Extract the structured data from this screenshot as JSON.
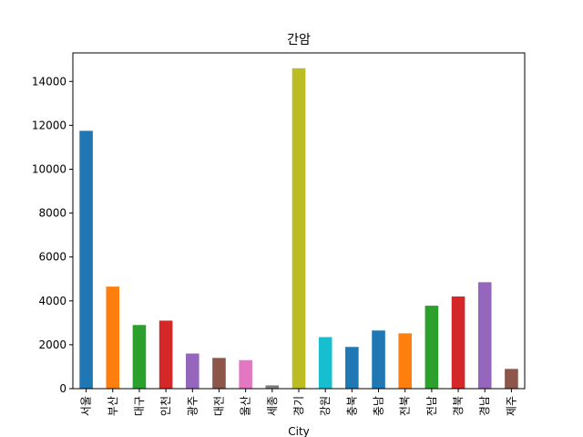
{
  "chart_data": {
    "type": "bar",
    "title": "간암",
    "xlabel": "City",
    "ylabel": "",
    "ylim": [
      0,
      15300
    ],
    "yticks": [
      0,
      2000,
      4000,
      6000,
      8000,
      10000,
      12000,
      14000
    ],
    "grid": false,
    "legend": "none",
    "categories": [
      "서울",
      "부산",
      "대구",
      "인천",
      "광주",
      "대전",
      "울산",
      "세종",
      "경기",
      "강원",
      "충북",
      "충남",
      "전북",
      "전남",
      "경북",
      "경남",
      "제주"
    ],
    "values": [
      11750,
      4650,
      2900,
      3100,
      1600,
      1400,
      1300,
      150,
      14600,
      2350,
      1900,
      2650,
      2520,
      3780,
      4200,
      4850,
      900
    ],
    "colors": [
      "#1f77b4",
      "#ff7f0e",
      "#2ca02c",
      "#d62728",
      "#9467bd",
      "#8c564b",
      "#e377c2",
      "#7f7f7f",
      "#bcbd22",
      "#17becf",
      "#1f77b4",
      "#1f77b4",
      "#ff7f0e",
      "#2ca02c",
      "#d62728",
      "#9467bd",
      "#8c564b"
    ]
  }
}
